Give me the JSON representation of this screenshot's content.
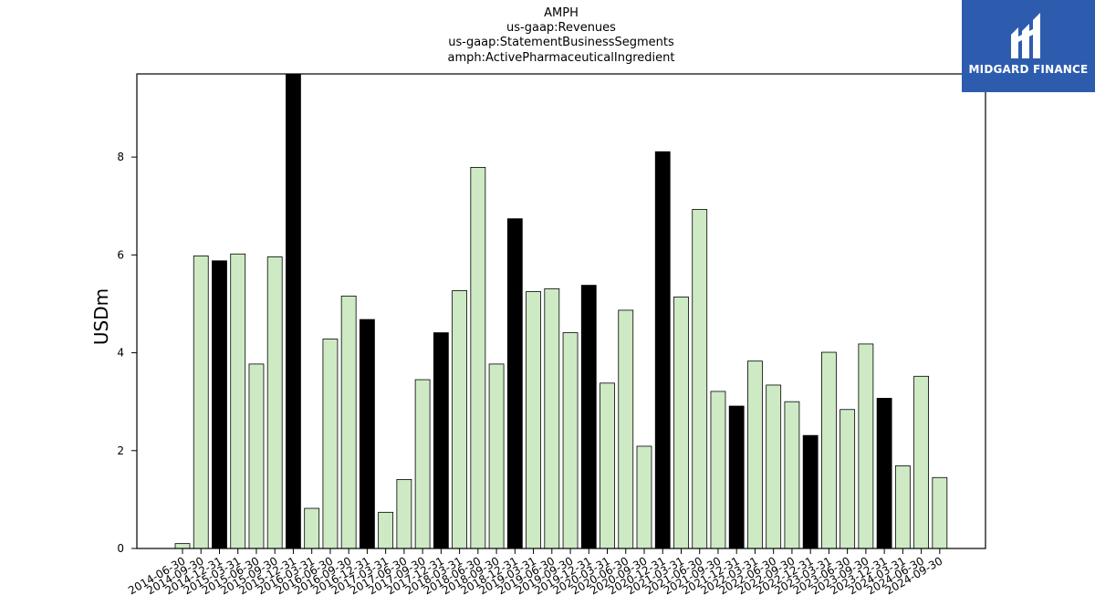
{
  "titles": [
    "AMPH",
    "us-gaap:Revenues",
    "us-gaap:StatementBusinessSegments",
    "amph:ActivePharmaceuticalIngredient"
  ],
  "logo": {
    "text": "MIDGARD FINANCE",
    "bg": "#2d5caf"
  },
  "colors": {
    "bar_light": "#cdeac4",
    "bar_dark": "#000000"
  },
  "chart_data": {
    "type": "bar",
    "categories": [
      "2014-06-30",
      "2014-09-30",
      "2014-12-31",
      "2015-03-31",
      "2015-06-30",
      "2015-09-30",
      "2015-12-31",
      "2016-03-31",
      "2016-06-30",
      "2016-09-30",
      "2016-12-31",
      "2017-03-31",
      "2017-06-30",
      "2017-09-30",
      "2017-12-31",
      "2018-03-31",
      "2018-06-30",
      "2018-09-30",
      "2018-12-31",
      "2019-03-31",
      "2019-06-30",
      "2019-09-30",
      "2019-12-31",
      "2020-03-31",
      "2020-06-30",
      "2020-09-30",
      "2020-12-31",
      "2021-03-31",
      "2021-06-30",
      "2021-09-30",
      "2021-12-31",
      "2022-03-31",
      "2022-06-30",
      "2022-09-30",
      "2022-12-31",
      "2023-03-31",
      "2023-06-30",
      "2023-09-30",
      "2023-12-31",
      "2024-03-31",
      "2024-06-30",
      "2024-09-30"
    ],
    "values": [
      0.1,
      5.98,
      5.88,
      6.02,
      3.77,
      5.96,
      9.7,
      0.82,
      4.28,
      5.16,
      4.68,
      0.74,
      1.41,
      3.45,
      4.41,
      5.27,
      7.79,
      3.77,
      6.74,
      5.25,
      5.31,
      4.41,
      5.38,
      3.38,
      4.87,
      2.09,
      8.11,
      5.14,
      6.93,
      3.21,
      2.91,
      3.83,
      3.34,
      3.0,
      2.31,
      4.01,
      2.84,
      4.18,
      3.07,
      1.69,
      3.52,
      1.45
    ],
    "dark": [
      false,
      false,
      true,
      false,
      false,
      false,
      true,
      false,
      false,
      false,
      true,
      false,
      false,
      false,
      true,
      false,
      false,
      false,
      true,
      false,
      false,
      false,
      true,
      false,
      false,
      false,
      true,
      false,
      false,
      false,
      true,
      false,
      false,
      false,
      true,
      false,
      false,
      false,
      true,
      false,
      false,
      false
    ],
    "ylabel": "USDm",
    "yticks": [
      0,
      2,
      4,
      6,
      8
    ],
    "ylim": [
      0,
      9.7
    ]
  }
}
